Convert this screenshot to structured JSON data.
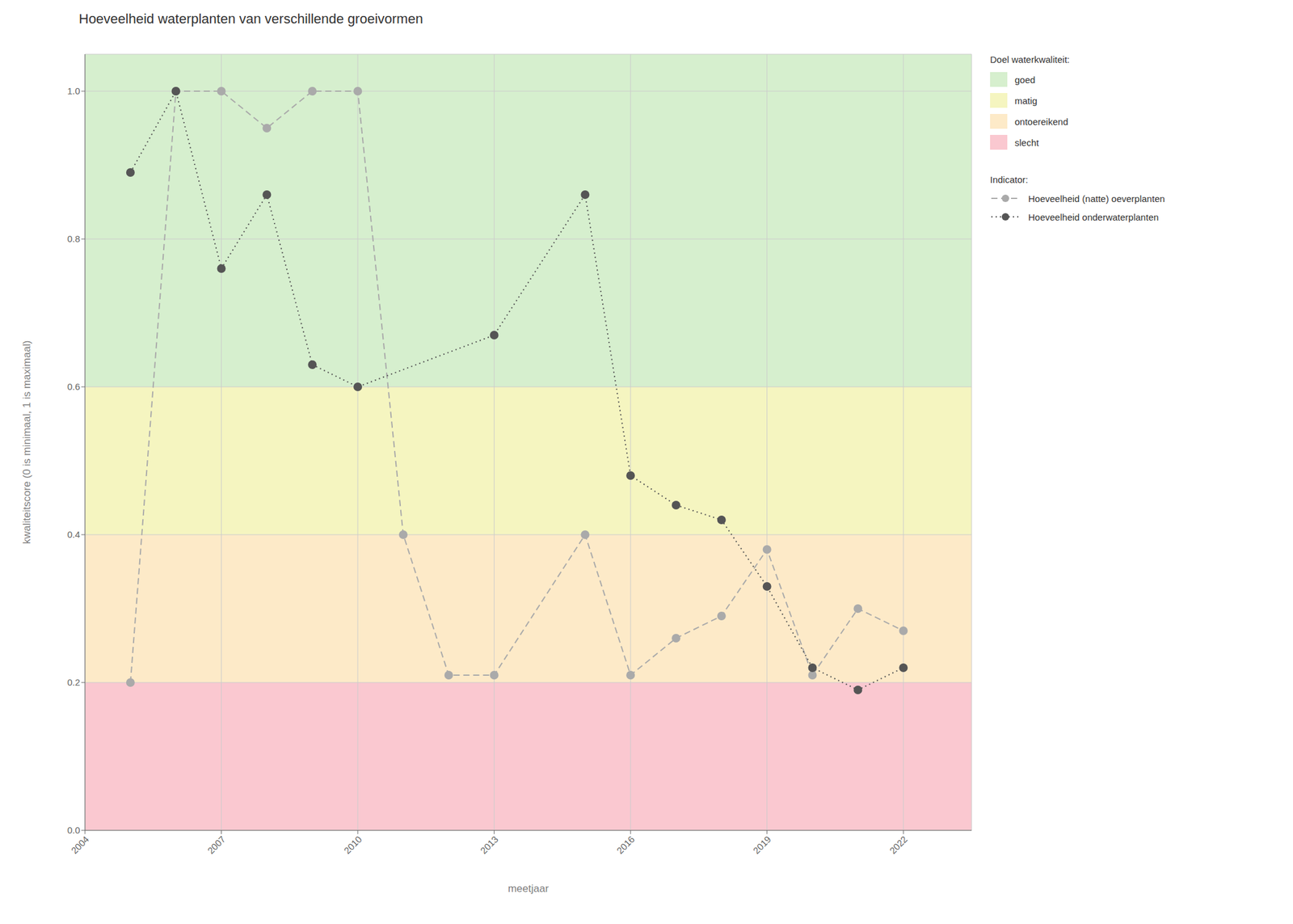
{
  "chart_data": {
    "type": "line",
    "title": "Hoeveelheid waterplanten van verschillende groeivormen",
    "x_label": "meetjaar",
    "y_label": "kwaliteitscore (0 is minimaal, 1 is maximaal)",
    "xlim": [
      2004,
      2023.5
    ],
    "ylim": [
      0.0,
      1.05
    ],
    "xticks": [
      2004,
      2007,
      2010,
      2013,
      2016,
      2019,
      2022
    ],
    "yticks": [
      {
        "value": 0.0,
        "label": "0.0"
      },
      0.2,
      0.4,
      0.6,
      0.8,
      {
        "value": 1.0,
        "label": "1.0"
      }
    ],
    "grid": true,
    "legend": "right",
    "bands": {
      "title": "Doel waterkwaliteit:",
      "items": [
        {
          "name": "goed",
          "color": "#d6efce",
          "from": 0.6,
          "to": 1.05
        },
        {
          "name": "matig",
          "color": "#f5f5c0",
          "from": 0.4,
          "to": 0.6
        },
        {
          "name": "ontoereikend",
          "color": "#fdeac8",
          "from": 0.2,
          "to": 0.4
        },
        {
          "name": "slecht",
          "color": "#fac8d0",
          "from": 0.0,
          "to": 0.2
        }
      ]
    },
    "series_legend_title": "Indicator:",
    "series": [
      {
        "name": "Hoeveelheid (natte) oeverplanten",
        "color": "#aaaaaa",
        "line_style": "dashed",
        "marker": "circle",
        "x": [
          2005,
          2006,
          2007,
          2008,
          2009,
          2010,
          2011,
          2012,
          2013,
          2015,
          2016,
          2017,
          2018,
          2019,
          2020,
          2021,
          2022
        ],
        "values": [
          0.2,
          1.0,
          1.0,
          0.95,
          1.0,
          1.0,
          0.4,
          0.21,
          0.21,
          0.4,
          0.21,
          0.26,
          0.29,
          0.38,
          0.21,
          0.3,
          0.27
        ]
      },
      {
        "name": "Hoeveelheid onderwaterplanten",
        "color": "#555555",
        "line_style": "dotted",
        "marker": "circle",
        "x": [
          2005,
          2006,
          2007,
          2008,
          2009,
          2010,
          2013,
          2015,
          2016,
          2017,
          2018,
          2019,
          2020,
          2021,
          2022
        ],
        "values": [
          0.89,
          1.0,
          0.76,
          0.86,
          0.63,
          0.6,
          0.67,
          0.86,
          0.48,
          0.44,
          0.42,
          0.33,
          0.22,
          0.19,
          0.22
        ]
      }
    ]
  }
}
